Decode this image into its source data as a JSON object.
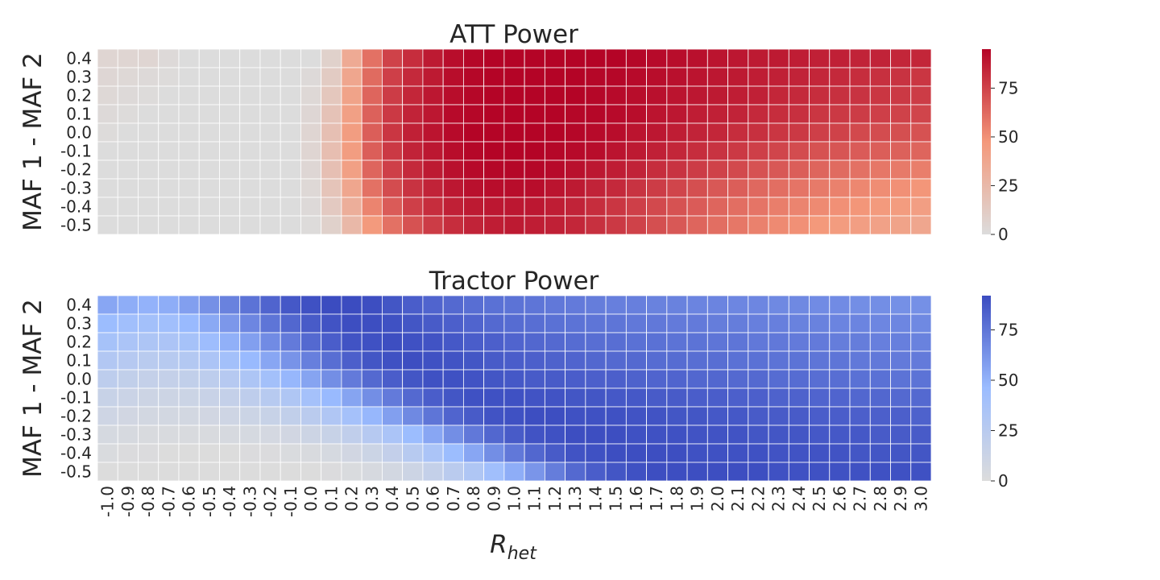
{
  "chart_data": [
    {
      "type": "heatmap",
      "title": "ATT Power",
      "ylabel": "MAF 1 - MAF 2",
      "xlabel": "",
      "colormap": "coolwarm-upper",
      "cmap_start": "#dcdcdc",
      "cmap_mid": "#f4987a",
      "cmap_end": "#b40426",
      "vmin": 0,
      "vmax": 95,
      "colorbar_ticks": [
        0,
        25,
        50,
        75
      ],
      "x_categories": [
        "-1.0",
        "-0.9",
        "-0.8",
        "-0.7",
        "-0.6",
        "-0.5",
        "-0.4",
        "-0.3",
        "-0.2",
        "-0.1",
        "0.0",
        "0.1",
        "0.2",
        "0.3",
        "0.4",
        "0.5",
        "0.6",
        "0.7",
        "0.8",
        "0.9",
        "1.0",
        "1.1",
        "1.2",
        "1.3",
        "1.4",
        "1.5",
        "1.6",
        "1.7",
        "1.8",
        "1.9",
        "2.0",
        "2.1",
        "2.2",
        "2.3",
        "2.4",
        "2.5",
        "2.6",
        "2.7",
        "2.8",
        "2.9",
        "3.0"
      ],
      "y_categories": [
        "0.4",
        "0.3",
        "0.2",
        "0.1",
        "0.0",
        "-0.1",
        "-0.2",
        "-0.3",
        "-0.4",
        "-0.5"
      ],
      "values": [
        [
          5,
          5,
          5,
          2,
          0,
          0,
          0,
          0,
          0,
          0,
          0,
          8,
          35,
          60,
          75,
          82,
          88,
          92,
          94,
          95,
          95,
          95,
          95,
          95,
          95,
          95,
          94,
          93,
          92,
          91,
          90,
          89,
          88,
          88,
          87,
          86,
          86,
          85,
          85,
          84,
          84
        ],
        [
          4,
          3,
          2,
          1,
          0,
          0,
          0,
          0,
          0,
          0,
          2,
          12,
          38,
          62,
          76,
          83,
          88,
          92,
          94,
          95,
          95,
          95,
          95,
          95,
          94,
          94,
          93,
          92,
          91,
          90,
          89,
          88,
          87,
          86,
          85,
          84,
          83,
          82,
          81,
          80,
          79
        ],
        [
          3,
          2,
          1,
          0,
          0,
          0,
          0,
          0,
          0,
          0,
          3,
          15,
          40,
          64,
          77,
          84,
          89,
          92,
          94,
          95,
          95,
          95,
          95,
          95,
          94,
          93,
          92,
          91,
          90,
          89,
          88,
          87,
          86,
          84,
          83,
          82,
          81,
          80,
          79,
          78,
          77
        ],
        [
          2,
          1,
          0,
          0,
          0,
          0,
          0,
          0,
          0,
          0,
          4,
          18,
          42,
          65,
          78,
          85,
          89,
          93,
          94,
          95,
          95,
          95,
          95,
          94,
          94,
          93,
          92,
          90,
          89,
          87,
          86,
          85,
          83,
          82,
          81,
          79,
          78,
          77,
          76,
          75,
          74
        ],
        [
          1,
          0,
          0,
          0,
          0,
          0,
          0,
          0,
          0,
          0,
          5,
          20,
          44,
          66,
          79,
          86,
          90,
          93,
          95,
          95,
          95,
          95,
          95,
          94,
          93,
          92,
          90,
          89,
          87,
          85,
          84,
          82,
          81,
          79,
          78,
          76,
          75,
          73,
          72,
          71,
          70
        ],
        [
          0,
          0,
          0,
          0,
          0,
          0,
          0,
          0,
          0,
          0,
          5,
          21,
          44,
          66,
          78,
          85,
          89,
          92,
          94,
          95,
          95,
          95,
          94,
          93,
          92,
          90,
          88,
          86,
          84,
          82,
          80,
          78,
          76,
          74,
          72,
          70,
          69,
          67,
          66,
          65,
          64
        ],
        [
          0,
          0,
          0,
          0,
          0,
          0,
          0,
          0,
          0,
          0,
          4,
          20,
          42,
          64,
          76,
          83,
          88,
          91,
          93,
          94,
          94,
          94,
          93,
          91,
          89,
          87,
          85,
          82,
          80,
          77,
          75,
          73,
          70,
          68,
          66,
          64,
          62,
          60,
          58,
          57,
          56
        ],
        [
          0,
          0,
          0,
          0,
          0,
          0,
          0,
          0,
          0,
          0,
          3,
          17,
          38,
          60,
          72,
          80,
          85,
          89,
          91,
          92,
          92,
          92,
          90,
          88,
          85,
          83,
          80,
          77,
          74,
          71,
          68,
          66,
          63,
          61,
          59,
          57,
          55,
          53,
          51,
          50,
          48
        ],
        [
          0,
          0,
          0,
          0,
          0,
          0,
          0,
          0,
          0,
          0,
          2,
          13,
          32,
          54,
          67,
          76,
          82,
          86,
          88,
          89,
          89,
          89,
          87,
          85,
          82,
          79,
          76,
          73,
          70,
          67,
          64,
          61,
          59,
          56,
          54,
          52,
          50,
          48,
          46,
          45,
          43
        ],
        [
          0,
          0,
          0,
          0,
          0,
          0,
          0,
          0,
          0,
          0,
          1,
          8,
          25,
          46,
          60,
          70,
          77,
          82,
          85,
          87,
          88,
          87,
          86,
          84,
          81,
          78,
          75,
          71,
          68,
          64,
          61,
          58,
          55,
          52,
          50,
          47,
          45,
          43,
          41,
          40,
          38
        ]
      ]
    },
    {
      "type": "heatmap",
      "title": "Tractor Power",
      "ylabel": "MAF 1 - MAF 2",
      "xlabel": "R_het",
      "xlabel_main": "R",
      "xlabel_sub": "het",
      "colormap": "coolwarm-lower",
      "cmap_start": "#dcdcdc",
      "cmap_mid": "#9bbcff",
      "cmap_end": "#3b4cc0",
      "vmin": 0,
      "vmax": 92,
      "colorbar_ticks": [
        0,
        25,
        50,
        75
      ],
      "x_categories": [
        "-1.0",
        "-0.9",
        "-0.8",
        "-0.7",
        "-0.6",
        "-0.5",
        "-0.4",
        "-0.3",
        "-0.2",
        "-0.1",
        "0.0",
        "0.1",
        "0.2",
        "0.3",
        "0.4",
        "0.5",
        "0.6",
        "0.7",
        "0.8",
        "0.9",
        "1.0",
        "1.1",
        "1.2",
        "1.3",
        "1.4",
        "1.5",
        "1.6",
        "1.7",
        "1.8",
        "1.9",
        "2.0",
        "2.1",
        "2.2",
        "2.3",
        "2.4",
        "2.5",
        "2.6",
        "2.7",
        "2.8",
        "2.9",
        "3.0"
      ],
      "y_categories": [
        "0.4",
        "0.3",
        "0.2",
        "0.1",
        "0.0",
        "-0.1",
        "-0.2",
        "-0.3",
        "-0.4",
        "-0.5"
      ],
      "values": [
        [
          55,
          52,
          50,
          52,
          58,
          64,
          70,
          76,
          82,
          87,
          90,
          92,
          92,
          91,
          88,
          85,
          82,
          80,
          78,
          77,
          76,
          75,
          74,
          73,
          72,
          71,
          71,
          70,
          70,
          69,
          69,
          68,
          68,
          67,
          67,
          66,
          66,
          65,
          65,
          64,
          64
        ],
        [
          45,
          42,
          40,
          42,
          47,
          54,
          61,
          68,
          75,
          81,
          86,
          89,
          91,
          91,
          90,
          88,
          86,
          84,
          82,
          80,
          79,
          78,
          77,
          76,
          75,
          75,
          74,
          74,
          73,
          73,
          72,
          72,
          71,
          71,
          70,
          70,
          69,
          69,
          68,
          68,
          67
        ],
        [
          38,
          35,
          33,
          34,
          38,
          44,
          51,
          58,
          66,
          73,
          80,
          85,
          89,
          90,
          91,
          90,
          89,
          87,
          85,
          84,
          82,
          81,
          80,
          79,
          78,
          78,
          77,
          77,
          76,
          76,
          75,
          75,
          74,
          74,
          73,
          73,
          72,
          72,
          71,
          71,
          70
        ],
        [
          30,
          27,
          25,
          26,
          29,
          34,
          40,
          47,
          55,
          63,
          71,
          78,
          84,
          88,
          90,
          91,
          90,
          89,
          88,
          86,
          85,
          84,
          83,
          82,
          81,
          80,
          80,
          79,
          79,
          78,
          78,
          77,
          77,
          76,
          76,
          75,
          75,
          74,
          74,
          73,
          73
        ],
        [
          22,
          19,
          17,
          17,
          19,
          22,
          27,
          33,
          40,
          48,
          56,
          65,
          73,
          80,
          85,
          88,
          90,
          90,
          89,
          88,
          87,
          86,
          86,
          85,
          84,
          84,
          83,
          82,
          82,
          81,
          81,
          80,
          80,
          79,
          79,
          78,
          78,
          77,
          77,
          76,
          76
        ],
        [
          15,
          13,
          11,
          11,
          12,
          14,
          17,
          21,
          26,
          32,
          39,
          47,
          56,
          65,
          73,
          80,
          85,
          88,
          90,
          90,
          90,
          89,
          89,
          88,
          88,
          87,
          87,
          86,
          86,
          85,
          85,
          84,
          84,
          83,
          83,
          82,
          82,
          81,
          81,
          80,
          80
        ],
        [
          10,
          8,
          7,
          7,
          7,
          8,
          10,
          12,
          15,
          19,
          24,
          31,
          39,
          48,
          58,
          67,
          75,
          82,
          86,
          89,
          90,
          91,
          91,
          90,
          90,
          90,
          89,
          89,
          88,
          88,
          87,
          87,
          86,
          86,
          86,
          85,
          85,
          84,
          84,
          84,
          83
        ],
        [
          5,
          4,
          3,
          3,
          3,
          3,
          4,
          5,
          6,
          8,
          11,
          15,
          20,
          27,
          35,
          45,
          55,
          65,
          74,
          81,
          86,
          89,
          90,
          91,
          91,
          91,
          90,
          90,
          90,
          89,
          89,
          89,
          88,
          88,
          88,
          87,
          87,
          87,
          86,
          86,
          86
        ],
        [
          2,
          1,
          1,
          0,
          0,
          0,
          0,
          1,
          1,
          2,
          3,
          5,
          8,
          12,
          18,
          26,
          35,
          45,
          55,
          65,
          74,
          81,
          86,
          89,
          90,
          91,
          91,
          91,
          91,
          90,
          90,
          90,
          90,
          89,
          89,
          89,
          89,
          88,
          88,
          88,
          88
        ],
        [
          0,
          0,
          0,
          0,
          0,
          0,
          0,
          0,
          0,
          0,
          0,
          1,
          2,
          4,
          7,
          11,
          17,
          24,
          32,
          42,
          52,
          62,
          72,
          80,
          85,
          88,
          90,
          91,
          91,
          91,
          91,
          91,
          91,
          90,
          90,
          90,
          90,
          90,
          90,
          90,
          90
        ]
      ]
    }
  ]
}
